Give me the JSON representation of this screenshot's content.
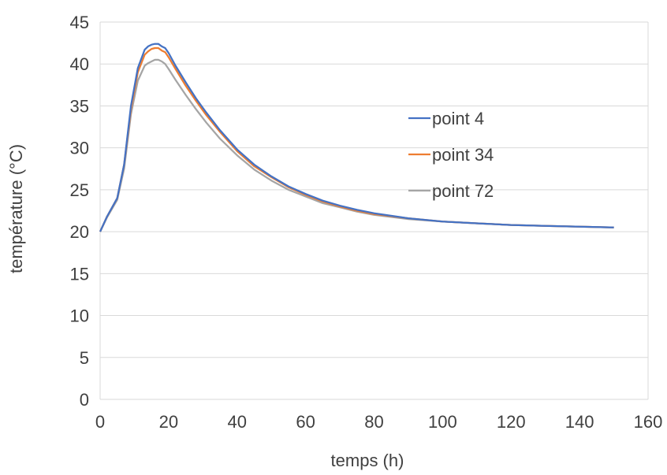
{
  "chart_data": {
    "type": "line",
    "title": "",
    "xlabel": "temps (h)",
    "ylabel": "température (°C)",
    "xlim": [
      0,
      160
    ],
    "ylim": [
      0,
      45
    ],
    "xticks": [
      0,
      20,
      40,
      60,
      80,
      100,
      120,
      140,
      160
    ],
    "yticks": [
      0,
      5,
      10,
      15,
      20,
      25,
      30,
      35,
      40,
      45
    ],
    "grid": "horizontal",
    "legend_position": "right",
    "series": [
      {
        "name": "point 4",
        "color": "#4472C4",
        "x": [
          0,
          2,
          5,
          7,
          9,
          11,
          13,
          14,
          15,
          16,
          17,
          18,
          19,
          20,
          22,
          25,
          28,
          31,
          35,
          40,
          45,
          50,
          55,
          60,
          65,
          70,
          75,
          80,
          90,
          100,
          110,
          120,
          130,
          140,
          150
        ],
        "y": [
          20,
          21.8,
          24,
          28,
          35,
          39.5,
          41.7,
          42.1,
          42.3,
          42.4,
          42.4,
          42.1,
          41.9,
          41.3,
          39.8,
          37.8,
          35.9,
          34.2,
          32.1,
          29.8,
          28.0,
          26.6,
          25.4,
          24.5,
          23.7,
          23.1,
          22.6,
          22.2,
          21.6,
          21.2,
          21.0,
          20.8,
          20.7,
          20.6,
          20.5
        ]
      },
      {
        "name": "point 34",
        "color": "#ED7D31",
        "x": [
          0,
          2,
          5,
          7,
          9,
          11,
          13,
          14,
          15,
          16,
          17,
          18,
          19,
          20,
          22,
          25,
          28,
          31,
          35,
          40,
          45,
          50,
          55,
          60,
          65,
          70,
          75,
          80,
          90,
          100,
          110,
          120,
          130,
          140,
          150
        ],
        "y": [
          20,
          21.8,
          24,
          28,
          34.6,
          39.0,
          41.1,
          41.5,
          41.8,
          41.9,
          41.9,
          41.6,
          41.4,
          40.8,
          39.4,
          37.4,
          35.6,
          33.9,
          31.9,
          29.6,
          27.8,
          26.5,
          25.3,
          24.4,
          23.6,
          23.0,
          22.5,
          22.1,
          21.6,
          21.2,
          21.0,
          20.8,
          20.7,
          20.6,
          20.5
        ]
      },
      {
        "name": "point 72",
        "color": "#A5A5A5",
        "x": [
          0,
          2,
          5,
          7,
          9,
          11,
          13,
          14,
          15,
          16,
          17,
          18,
          19,
          20,
          22,
          25,
          28,
          31,
          35,
          40,
          45,
          50,
          55,
          60,
          65,
          70,
          75,
          80,
          90,
          100,
          110,
          120,
          130,
          140,
          150
        ],
        "y": [
          20,
          21.7,
          23.8,
          27.5,
          34.0,
          38.0,
          39.8,
          40.1,
          40.3,
          40.5,
          40.5,
          40.3,
          40.0,
          39.4,
          38.1,
          36.3,
          34.6,
          33.0,
          31.1,
          29.1,
          27.4,
          26.1,
          25.0,
          24.2,
          23.4,
          22.9,
          22.4,
          22.0,
          21.5,
          21.2,
          21.0,
          20.8,
          20.7,
          20.6,
          20.5
        ]
      }
    ]
  }
}
